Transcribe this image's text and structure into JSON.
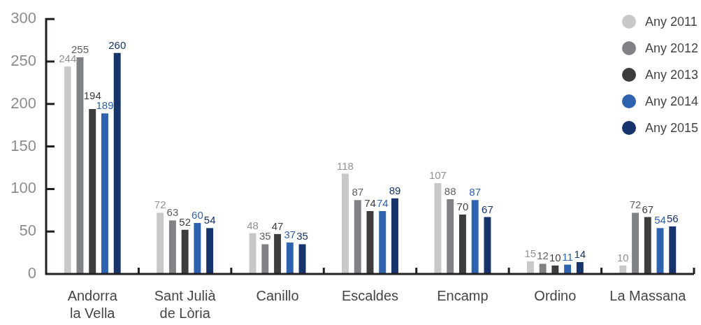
{
  "chart_data": {
    "type": "bar",
    "categories": [
      "Andorra la Vella",
      "Sant Julià de Lòria",
      "Canillo",
      "Escaldes",
      "Encamp",
      "Ordino",
      "La Massana"
    ],
    "series": [
      {
        "name": "Any 2011",
        "color": "#c8c8c8",
        "values": [
          244,
          72,
          48,
          118,
          107,
          15,
          10
        ]
      },
      {
        "name": "Any 2012",
        "color": "#808285",
        "values": [
          255,
          63,
          35,
          87,
          88,
          12,
          72
        ]
      },
      {
        "name": "Any 2013",
        "color": "#3d3d3d",
        "values": [
          194,
          52,
          47,
          74,
          70,
          10,
          67
        ]
      },
      {
        "name": "Any 2014",
        "color": "#2e62ae",
        "values": [
          189,
          60,
          37,
          74,
          87,
          11,
          54
        ]
      },
      {
        "name": "Any 2015",
        "color": "#16346b",
        "values": [
          260,
          54,
          35,
          89,
          67,
          14,
          56
        ]
      }
    ],
    "ylim": [
      0,
      300
    ],
    "yticks": [
      0,
      50,
      100,
      150,
      200,
      250,
      300
    ],
    "grid": false,
    "legend": "top right",
    "data_labels": true
  }
}
